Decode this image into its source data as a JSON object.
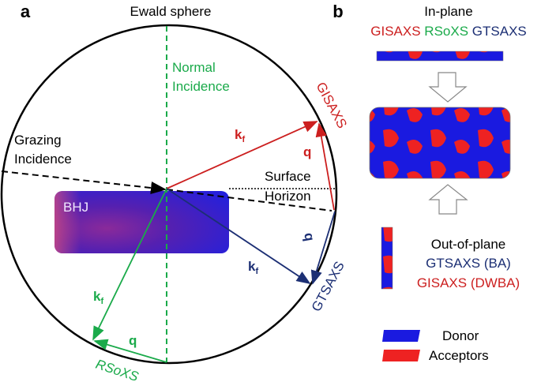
{
  "panel_a": {
    "panel_label": "a",
    "title": "Ewald sphere",
    "normal_incidence": [
      "Normal",
      "Incidence"
    ],
    "grazing_incidence": [
      "Grazing",
      "Incidence"
    ],
    "surface_horizon": [
      "Surface",
      "Horizon"
    ],
    "sample_label": "BHJ",
    "kf_label": "k",
    "kf_subscript": "f",
    "q_label": "q",
    "gisaxs_label": "GISAXS",
    "gtsaxs_label": "GTSAXS",
    "rsoxs_label": "RSoXS"
  },
  "panel_b": {
    "panel_label": "b",
    "in_plane_title": "In-plane",
    "in_plane_methods": [
      "GISAXS",
      "RSoXS",
      "GTSAXS"
    ],
    "out_of_plane_title": "Out-of-plane",
    "out_of_plane_methods": [
      "GTSAXS (BA)",
      "GISAXS (DWBA)"
    ],
    "legend": [
      "Donor",
      "Acceptors"
    ]
  },
  "colors": {
    "gisaxs": "#cc1f1f",
    "rsoxs": "#1aaa4a",
    "gtsaxs": "#1c2f74",
    "donor": "#1a1ae0",
    "acceptor": "#ee2222"
  }
}
